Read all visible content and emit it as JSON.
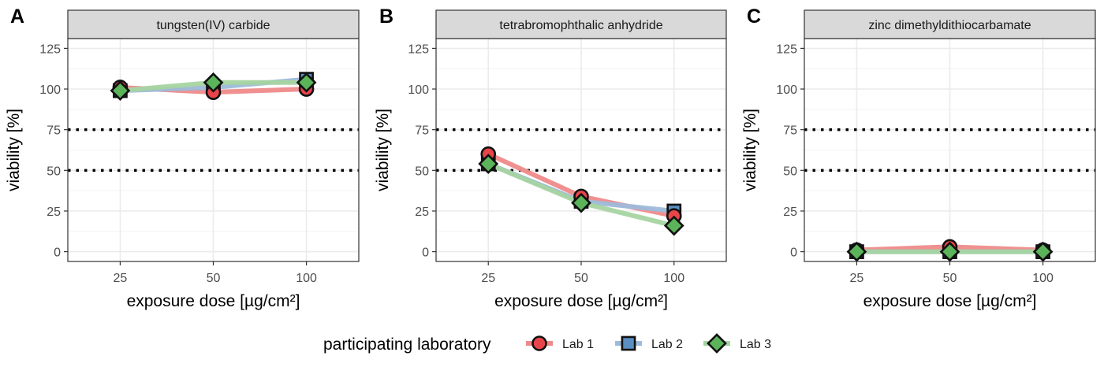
{
  "chart_data": {
    "type": "line",
    "panels": [
      {
        "label": "A",
        "title": "tungsten(IV) carbide",
        "xlabel": "exposure dose [µg/cm²]",
        "ylabel": "viability [%]",
        "categories": [
          "25",
          "50",
          "100"
        ],
        "yticks": [
          "0",
          "25",
          "50",
          "75",
          "100",
          "125"
        ],
        "ylim": [
          -6,
          131
        ],
        "reference_lines": [
          50,
          75
        ],
        "series": [
          {
            "name": "Lab 1",
            "values": [
              101,
              98,
              100
            ]
          },
          {
            "name": "Lab 2",
            "values": [
              99,
              101,
              106
            ]
          },
          {
            "name": "Lab 3",
            "values": [
              99,
              104,
              104
            ]
          }
        ]
      },
      {
        "label": "B",
        "title": "tetrabromophthalic anhydride",
        "xlabel": "exposure dose [µg/cm²]",
        "ylabel": "viability [%]",
        "categories": [
          "25",
          "50",
          "100"
        ],
        "yticks": [
          "0",
          "25",
          "50",
          "75",
          "100",
          "125"
        ],
        "ylim": [
          -6,
          131
        ],
        "reference_lines": [
          50,
          75
        ],
        "series": [
          {
            "name": "Lab 1",
            "values": [
              60,
              34,
              22
            ]
          },
          {
            "name": "Lab 2",
            "values": [
              54,
              31,
              25
            ]
          },
          {
            "name": "Lab 3",
            "values": [
              54,
              30,
              16
            ]
          }
        ]
      },
      {
        "label": "C",
        "title": "zinc dimethyldithiocarbamate",
        "xlabel": "exposure dose [µg/cm²]",
        "ylabel": "viability [%]",
        "categories": [
          "25",
          "50",
          "100"
        ],
        "yticks": [
          "0",
          "25",
          "50",
          "75",
          "100",
          "125"
        ],
        "ylim": [
          -6,
          131
        ],
        "reference_lines": [
          50,
          75
        ],
        "series": [
          {
            "name": "Lab 1",
            "values": [
              1,
              3,
              1
            ]
          },
          {
            "name": "Lab 2",
            "values": [
              0,
              0,
              0
            ]
          },
          {
            "name": "Lab 3",
            "values": [
              0,
              0,
              0
            ]
          }
        ]
      }
    ],
    "legend": {
      "title": "participating laboratory",
      "position": "bottom",
      "entries": [
        {
          "name": "Lab 1",
          "shape": "circle",
          "color": "#E41A1C",
          "fill": "#E8454A",
          "line": "#EF8A8A"
        },
        {
          "name": "Lab 2",
          "shape": "square",
          "color": "#377EB8",
          "fill": "#5B8FC2",
          "line": "#9DBBDA"
        },
        {
          "name": "Lab 3",
          "shape": "diamond",
          "color": "#4DAF4A",
          "fill": "#5CB45A",
          "line": "#A6D4A1"
        }
      ]
    },
    "colors": {
      "strip_fill": "#D9D9D9",
      "grid_major": "#EBEBEB",
      "grid_minor": "#F3F3F3",
      "panel_border": "#333333"
    }
  }
}
